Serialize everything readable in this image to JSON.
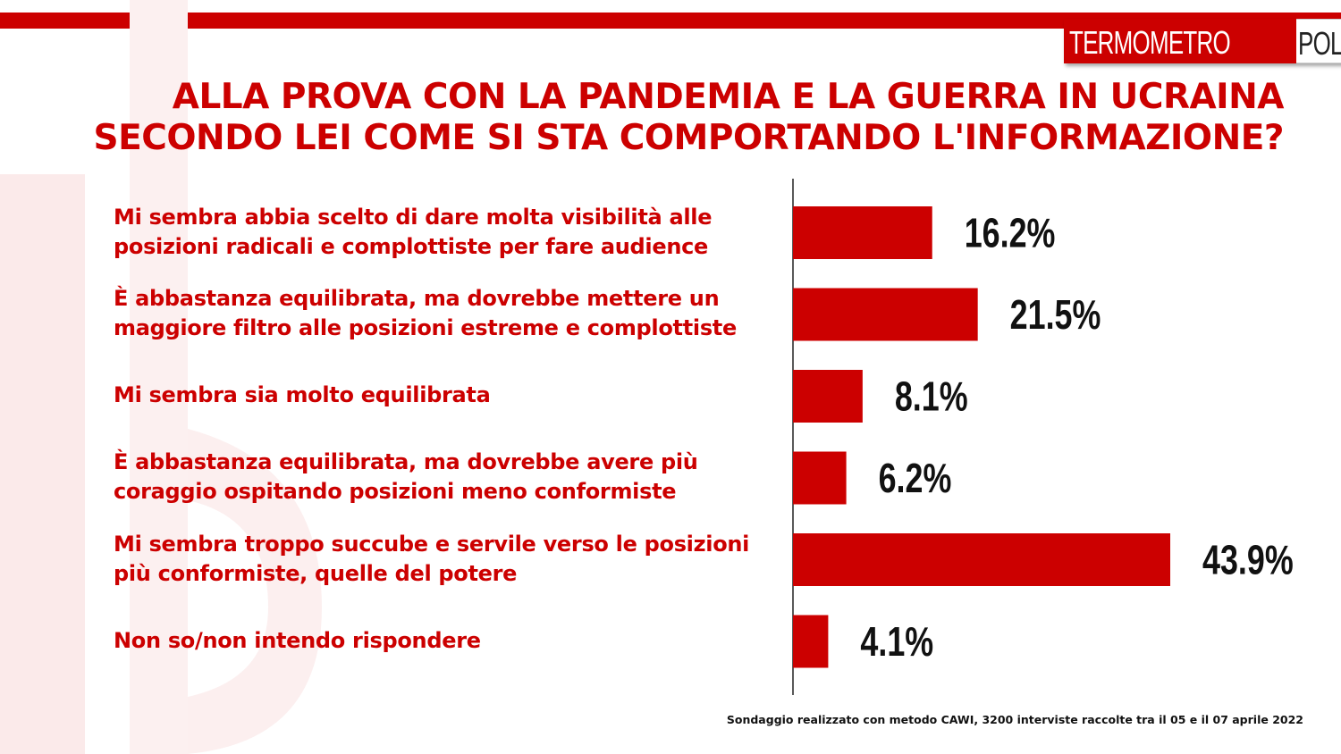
{
  "brand": {
    "logo_part1": "TERMOMETRO",
    "logo_part2": "POLITICO",
    "accent_color": "#cc0000"
  },
  "chart_data": {
    "type": "bar",
    "orientation": "horizontal",
    "title_line1": "ALLA PROVA CON LA PANDEMIA E LA GUERRA IN UCRAINA",
    "title_line2": "SECONDO LEI COME SI STA COMPORTANDO L'INFORMAZIONE?",
    "categories": [
      "Mi sembra abbia scelto di dare molta visibilità  alle\nposizioni radicali e complottiste per fare audience",
      "È abbastanza equilibrata, ma dovrebbe mettere un\nmaggiore filtro alle posizioni estreme e complottiste",
      "Mi sembra sia molto equilibrata",
      "È abbastanza equilibrata, ma dovrebbe avere più\ncoraggio ospitando posizioni meno conformiste",
      "Mi sembra troppo succube e servile verso le posizioni\npiù conformiste, quelle del potere",
      "Non so/non intendo rispondere"
    ],
    "values": [
      16.2,
      21.5,
      8.1,
      6.2,
      43.9,
      4.1
    ],
    "value_labels": [
      "16.2%",
      "21.5%",
      "8.1%",
      "6.2%",
      "43.9%",
      "4.1%"
    ],
    "xlim": [
      0,
      44
    ],
    "bar_color": "#cc0000",
    "grid": false,
    "legend": "none"
  },
  "footnote": "Sondaggio realizzato con metodo CAWI, 3200 interviste raccolte tra il 05 e il 07 aprile 2022"
}
